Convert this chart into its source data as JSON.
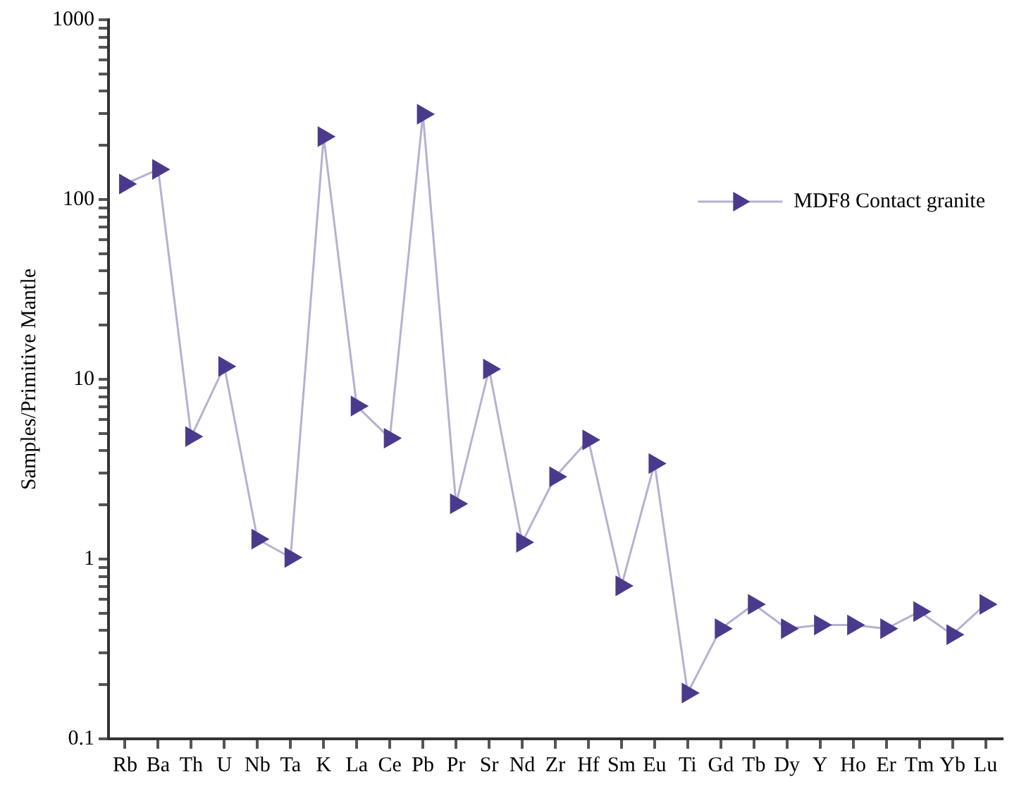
{
  "chart_data": {
    "type": "line",
    "ylabel": "Samples/Primitive Mantle",
    "categories": [
      "Rb",
      "Ba",
      "Th",
      "U",
      "Nb",
      "Ta",
      "K",
      "La",
      "Ce",
      "Pb",
      "Pr",
      "Sr",
      "Nd",
      "Zr",
      "Hf",
      "Sm",
      "Eu",
      "Ti",
      "Gd",
      "Tb",
      "Dy",
      "Y",
      "Ho",
      "Er",
      "Tm",
      "Yb",
      "Lu"
    ],
    "series": [
      {
        "name": "MDF8 Contact granite",
        "color": "#4b3a8c",
        "values": [
          122,
          147,
          4.8,
          11.8,
          1.29,
          1.02,
          224,
          7.1,
          4.7,
          298,
          2.03,
          11.4,
          1.24,
          2.87,
          4.6,
          0.71,
          3.4,
          0.18,
          0.41,
          0.56,
          0.41,
          0.43,
          0.43,
          0.41,
          0.51,
          0.38,
          0.56
        ]
      }
    ],
    "log": "y",
    "ylim": [
      0.1,
      1000
    ],
    "yticks": [
      0.1,
      {
        "value": 0.2,
        "label": null
      },
      {
        "value": 0.3,
        "label": null
      },
      {
        "value": 0.4,
        "label": null
      },
      {
        "value": 0.5,
        "label": null
      },
      {
        "value": 0.6,
        "label": null
      },
      {
        "value": 0.7,
        "label": null
      },
      {
        "value": 0.8,
        "label": null
      },
      {
        "value": 0.9,
        "label": null
      },
      1,
      {
        "value": 2,
        "label": null
      },
      {
        "value": 3,
        "label": null
      },
      {
        "value": 4,
        "label": null
      },
      {
        "value": 5,
        "label": null
      },
      {
        "value": 6,
        "label": null
      },
      {
        "value": 7,
        "label": null
      },
      {
        "value": 8,
        "label": null
      },
      {
        "value": 9,
        "label": null
      },
      10,
      {
        "value": 20,
        "label": null
      },
      {
        "value": 30,
        "label": null
      },
      {
        "value": 40,
        "label": null
      },
      {
        "value": 50,
        "label": null
      },
      {
        "value": 60,
        "label": null
      },
      {
        "value": 70,
        "label": null
      },
      {
        "value": 80,
        "label": null
      },
      {
        "value": 90,
        "label": null
      },
      100,
      {
        "value": 200,
        "label": null
      },
      {
        "value": 300,
        "label": null
      },
      {
        "value": 400,
        "label": null
      },
      {
        "value": 500,
        "label": null
      },
      {
        "value": 600,
        "label": null
      },
      {
        "value": 700,
        "label": null
      },
      {
        "value": 800,
        "label": null
      },
      {
        "value": 900,
        "label": null
      },
      1000
    ],
    "grid": false,
    "legend": "top right",
    "marker": "triangle",
    "line_style": "solid"
  }
}
